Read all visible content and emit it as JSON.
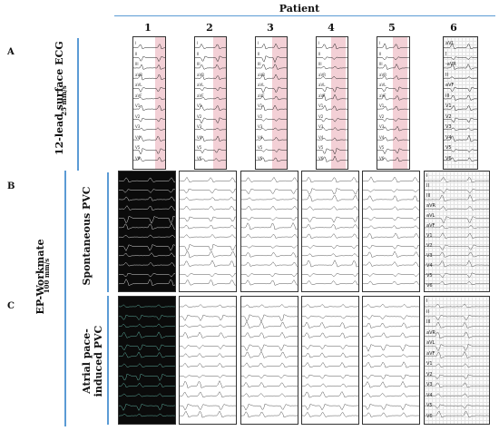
{
  "header": {
    "title": "Patient",
    "patients": [
      "1",
      "2",
      "3",
      "4",
      "5",
      "6"
    ]
  },
  "sections": {
    "a": {
      "letter": "A",
      "title": "12-lead surface ECG",
      "speed": "25 mm/s"
    },
    "b": {
      "letter": "B",
      "group_title": "EP-Workmate",
      "group_speed": "100 mm/s",
      "row_title": "Spontaneous PVC"
    },
    "c": {
      "letter": "C",
      "row_title": "Atrial pace-induced PVC"
    }
  },
  "leads": [
    "I",
    "II",
    "III",
    "aVR",
    "aVL",
    "aVF",
    "V1",
    "V2",
    "V3",
    "V4",
    "V5",
    "V6"
  ],
  "leads_patient6": [
    "aVL",
    "I",
    "-aVR",
    "II",
    "aVF",
    "III",
    "V1",
    "V2",
    "V3",
    "V4",
    "V5",
    "V6"
  ],
  "leads_patient6_ep": [
    "I",
    "II",
    "III",
    "aVR",
    "aVL",
    "aVF",
    "V1",
    "V2",
    "V3",
    "V4",
    "V5",
    "V6"
  ],
  "colors": {
    "accent_line": "#5b9bd5",
    "ecg_highlight": "#f3d0d6",
    "dark_panel": "#0b0b0b"
  }
}
